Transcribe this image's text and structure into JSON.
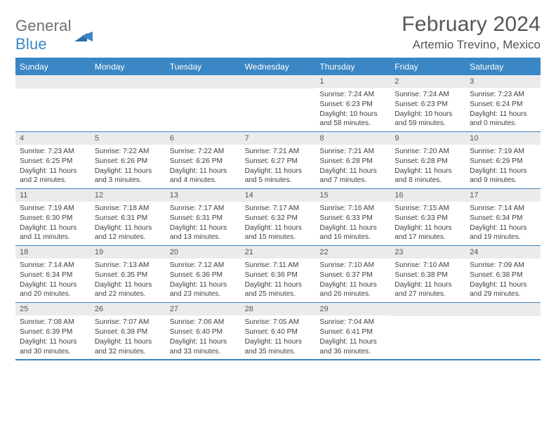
{
  "logo": {
    "text1": "General",
    "text2": "Blue"
  },
  "title": {
    "month": "February 2024",
    "location": "Artemio Trevino, Mexico"
  },
  "colors": {
    "accent": "#3b86c4",
    "headerBg": "#3b86c4",
    "daynumBg": "#ebebeb",
    "text": "#3a3a3a"
  },
  "dow": [
    "Sunday",
    "Monday",
    "Tuesday",
    "Wednesday",
    "Thursday",
    "Friday",
    "Saturday"
  ],
  "firstWeekday": 4,
  "daysInMonth": 29,
  "days": [
    {
      "n": "1",
      "sunrise": "Sunrise: 7:24 AM",
      "sunset": "Sunset: 6:23 PM",
      "daylight": "Daylight: 10 hours and 58 minutes."
    },
    {
      "n": "2",
      "sunrise": "Sunrise: 7:24 AM",
      "sunset": "Sunset: 6:23 PM",
      "daylight": "Daylight: 10 hours and 59 minutes."
    },
    {
      "n": "3",
      "sunrise": "Sunrise: 7:23 AM",
      "sunset": "Sunset: 6:24 PM",
      "daylight": "Daylight: 11 hours and 0 minutes."
    },
    {
      "n": "4",
      "sunrise": "Sunrise: 7:23 AM",
      "sunset": "Sunset: 6:25 PM",
      "daylight": "Daylight: 11 hours and 2 minutes."
    },
    {
      "n": "5",
      "sunrise": "Sunrise: 7:22 AM",
      "sunset": "Sunset: 6:26 PM",
      "daylight": "Daylight: 11 hours and 3 minutes."
    },
    {
      "n": "6",
      "sunrise": "Sunrise: 7:22 AM",
      "sunset": "Sunset: 6:26 PM",
      "daylight": "Daylight: 11 hours and 4 minutes."
    },
    {
      "n": "7",
      "sunrise": "Sunrise: 7:21 AM",
      "sunset": "Sunset: 6:27 PM",
      "daylight": "Daylight: 11 hours and 5 minutes."
    },
    {
      "n": "8",
      "sunrise": "Sunrise: 7:21 AM",
      "sunset": "Sunset: 6:28 PM",
      "daylight": "Daylight: 11 hours and 7 minutes."
    },
    {
      "n": "9",
      "sunrise": "Sunrise: 7:20 AM",
      "sunset": "Sunset: 6:28 PM",
      "daylight": "Daylight: 11 hours and 8 minutes."
    },
    {
      "n": "10",
      "sunrise": "Sunrise: 7:19 AM",
      "sunset": "Sunset: 6:29 PM",
      "daylight": "Daylight: 11 hours and 9 minutes."
    },
    {
      "n": "11",
      "sunrise": "Sunrise: 7:19 AM",
      "sunset": "Sunset: 6:30 PM",
      "daylight": "Daylight: 11 hours and 11 minutes."
    },
    {
      "n": "12",
      "sunrise": "Sunrise: 7:18 AM",
      "sunset": "Sunset: 6:31 PM",
      "daylight": "Daylight: 11 hours and 12 minutes."
    },
    {
      "n": "13",
      "sunrise": "Sunrise: 7:17 AM",
      "sunset": "Sunset: 6:31 PM",
      "daylight": "Daylight: 11 hours and 13 minutes."
    },
    {
      "n": "14",
      "sunrise": "Sunrise: 7:17 AM",
      "sunset": "Sunset: 6:32 PM",
      "daylight": "Daylight: 11 hours and 15 minutes."
    },
    {
      "n": "15",
      "sunrise": "Sunrise: 7:16 AM",
      "sunset": "Sunset: 6:33 PM",
      "daylight": "Daylight: 11 hours and 16 minutes."
    },
    {
      "n": "16",
      "sunrise": "Sunrise: 7:15 AM",
      "sunset": "Sunset: 6:33 PM",
      "daylight": "Daylight: 11 hours and 17 minutes."
    },
    {
      "n": "17",
      "sunrise": "Sunrise: 7:14 AM",
      "sunset": "Sunset: 6:34 PM",
      "daylight": "Daylight: 11 hours and 19 minutes."
    },
    {
      "n": "18",
      "sunrise": "Sunrise: 7:14 AM",
      "sunset": "Sunset: 6:34 PM",
      "daylight": "Daylight: 11 hours and 20 minutes."
    },
    {
      "n": "19",
      "sunrise": "Sunrise: 7:13 AM",
      "sunset": "Sunset: 6:35 PM",
      "daylight": "Daylight: 11 hours and 22 minutes."
    },
    {
      "n": "20",
      "sunrise": "Sunrise: 7:12 AM",
      "sunset": "Sunset: 6:36 PM",
      "daylight": "Daylight: 11 hours and 23 minutes."
    },
    {
      "n": "21",
      "sunrise": "Sunrise: 7:11 AM",
      "sunset": "Sunset: 6:36 PM",
      "daylight": "Daylight: 11 hours and 25 minutes."
    },
    {
      "n": "22",
      "sunrise": "Sunrise: 7:10 AM",
      "sunset": "Sunset: 6:37 PM",
      "daylight": "Daylight: 11 hours and 26 minutes."
    },
    {
      "n": "23",
      "sunrise": "Sunrise: 7:10 AM",
      "sunset": "Sunset: 6:38 PM",
      "daylight": "Daylight: 11 hours and 27 minutes."
    },
    {
      "n": "24",
      "sunrise": "Sunrise: 7:09 AM",
      "sunset": "Sunset: 6:38 PM",
      "daylight": "Daylight: 11 hours and 29 minutes."
    },
    {
      "n": "25",
      "sunrise": "Sunrise: 7:08 AM",
      "sunset": "Sunset: 6:39 PM",
      "daylight": "Daylight: 11 hours and 30 minutes."
    },
    {
      "n": "26",
      "sunrise": "Sunrise: 7:07 AM",
      "sunset": "Sunset: 6:39 PM",
      "daylight": "Daylight: 11 hours and 32 minutes."
    },
    {
      "n": "27",
      "sunrise": "Sunrise: 7:06 AM",
      "sunset": "Sunset: 6:40 PM",
      "daylight": "Daylight: 11 hours and 33 minutes."
    },
    {
      "n": "28",
      "sunrise": "Sunrise: 7:05 AM",
      "sunset": "Sunset: 6:40 PM",
      "daylight": "Daylight: 11 hours and 35 minutes."
    },
    {
      "n": "29",
      "sunrise": "Sunrise: 7:04 AM",
      "sunset": "Sunset: 6:41 PM",
      "daylight": "Daylight: 11 hours and 36 minutes."
    }
  ]
}
